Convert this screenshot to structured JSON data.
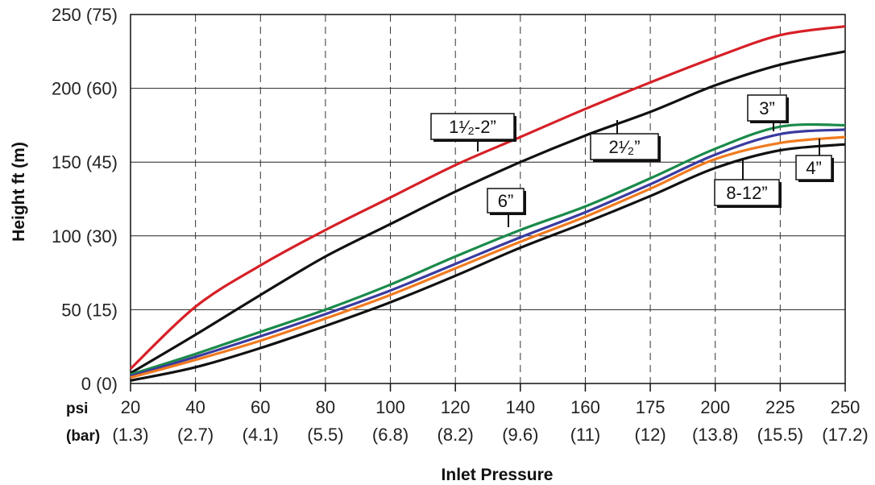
{
  "chart_data": {
    "type": "line",
    "title": "",
    "xlabel": "Inlet Pressure",
    "ylabel": "Height ft (m)",
    "x_row_labels": [
      "psi",
      "(bar)"
    ],
    "categories": [
      "20",
      "40",
      "60",
      "80",
      "100",
      "120",
      "140",
      "160",
      "175",
      "200",
      "225",
      "250"
    ],
    "categories_bar": [
      "(1.3)",
      "(2.7)",
      "(4.1)",
      "(5.5)",
      "(6.8)",
      "(8.2)",
      "(9.6)",
      "(11)",
      "(12)",
      "(13.8)",
      "(15.5)",
      "(17.2)"
    ],
    "y_ticks": [
      {
        "value": 0,
        "label": "0 (0)"
      },
      {
        "value": 50,
        "label": "50 (15)"
      },
      {
        "value": 100,
        "label": "100 (30)"
      },
      {
        "value": 150,
        "label": "150 (45)"
      },
      {
        "value": 200,
        "label": "200 (60)"
      },
      {
        "value": 250,
        "label": "250 (75)"
      }
    ],
    "ylim": [
      0,
      250
    ],
    "grid": {
      "vertical": "dashed",
      "horizontal": "solid"
    },
    "series": [
      {
        "name": "1½-2\"",
        "color": "#d62027",
        "values": [
          10,
          52,
          80,
          104,
          126,
          148,
          167,
          186,
          204,
          221,
          236,
          242
        ]
      },
      {
        "name": "2½\"",
        "color": "#111111",
        "values": [
          7,
          33,
          60,
          86,
          108,
          130,
          150,
          168,
          184,
          202,
          216,
          225
        ]
      },
      {
        "name": "3\"",
        "color": "#1a8a4a",
        "values": [
          6,
          20,
          35,
          50,
          67,
          86,
          104,
          120,
          139,
          159,
          174,
          175
        ]
      },
      {
        "name": "4\"",
        "color": "#3a3aa0",
        "values": [
          5,
          18,
          32,
          47,
          63,
          81,
          99,
          116,
          135,
          155,
          169,
          172
        ]
      },
      {
        "name": "8-12\"",
        "color": "#f07a1e",
        "values": [
          4,
          16,
          29,
          44,
          60,
          78,
          96,
          113,
          132,
          152,
          163,
          167
        ]
      },
      {
        "name": "6\"",
        "color": "#111111",
        "values": [
          2,
          11,
          24,
          39,
          55,
          73,
          92,
          109,
          127,
          146,
          158,
          162
        ]
      }
    ],
    "callouts": [
      {
        "text": "1¹⁄₂-2”"
      },
      {
        "text": "2¹⁄₂”"
      },
      {
        "text": "3”"
      },
      {
        "text": "4”"
      },
      {
        "text": "8-12”"
      },
      {
        "text": "6”"
      }
    ]
  }
}
